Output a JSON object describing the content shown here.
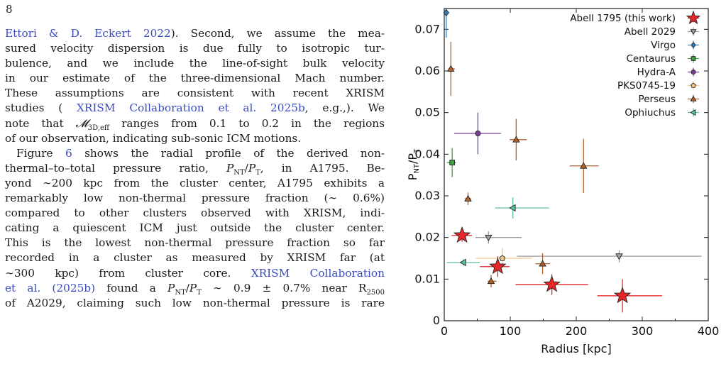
{
  "page": {
    "number": "8"
  },
  "text": {
    "lines": [
      "Ettori & D. Eckert 2022). Second, we assume the mea-",
      "sured velocity dispersion is due fully to isotropic tur-",
      "bulence, and we include the line-of-sight bulk velocity",
      "in our estimate of the three-dimensional Mach number.",
      "These assumptions are consistent with recent XRISM",
      "studies ( XRISM Collaboration et al. 2025b, e.g.,). We",
      "note that 𝓜3D,eff ranges from 0.1 to 0.2 in the regions",
      "of our observation, indicating sub-sonic ICM motions.",
      "Figure 6 shows the radial profile of the derived non-",
      "thermal–to–total pressure ratio, PNT/PT, in A1795. Be-",
      "yond ∼200 kpc from the cluster center, A1795 exhibits a",
      "remarkably low non-thermal pressure fraction (∼ 0.6%)",
      "compared to other clusters observed with XRISM, indi-",
      "cating a quiescent ICM just outside the cluster center.",
      "This is the lowest non-thermal pressure fraction so far",
      "recorded in a cluster as measured by XRISM far (at",
      "∼300 kpc) from cluster core.    XRISM Collaboration",
      "et al. (2025b) found a PNT/PT ∼ 0.9 ± 0.7% near R2500",
      "of A2029, claiming such low non-thermal pressure is rare"
    ]
  },
  "chart_data": {
    "type": "scatter",
    "xlabel": "Radius [kpc]",
    "ylabel": "PNT/PT",
    "xlim": [
      0,
      400
    ],
    "ylim": [
      0,
      0.075
    ],
    "x_ticks": [
      0,
      100,
      200,
      300,
      400
    ],
    "y_ticks": [
      0,
      0.01,
      0.02,
      0.03,
      0.04,
      0.05,
      0.06,
      0.07
    ],
    "y_tick_labels": [
      "0",
      "0.01",
      "0.02",
      "0.03",
      "0.04",
      "0.05",
      "0.06",
      "0.07"
    ],
    "legend_position": "top-right",
    "series": [
      {
        "name": "Abell 1795 (this work)",
        "marker": "star",
        "color": "#e8262a",
        "points": [
          {
            "x": 27,
            "y": 0.0205,
            "xerr": [
              16,
              15
            ],
            "yerr": 0.0015
          },
          {
            "x": 81,
            "y": 0.013,
            "xerr": [
              27,
              18
            ],
            "yerr": 0.0025
          },
          {
            "x": 163,
            "y": 0.0087,
            "xerr": [
              55,
              55
            ],
            "yerr": 0.0025
          },
          {
            "x": 270,
            "y": 0.006,
            "xerr": [
              38,
              60
            ],
            "yerr": 0.004
          }
        ]
      },
      {
        "name": "Abell 2029",
        "marker": "tri-down",
        "color": "#a0a0a0",
        "points": [
          {
            "x": 67,
            "y": 0.02,
            "xerr": [
              20,
              50
            ],
            "yerr": 0.0015
          },
          {
            "x": 265,
            "y": 0.0155,
            "xerr": [
              155,
              125
            ],
            "yerr": 0.0015
          }
        ]
      },
      {
        "name": "Virgo",
        "marker": "diamond",
        "color": "#2f7fc0",
        "points": [
          {
            "x": 3,
            "y": 0.074,
            "xerr": [
              2,
              2
            ],
            "yerr": 0.006
          }
        ]
      },
      {
        "name": "Centaurus",
        "marker": "square",
        "color": "#3ea13e",
        "points": [
          {
            "x": 12,
            "y": 0.038,
            "xerr": [
              8,
              6
            ],
            "yerr": 0.0035
          }
        ]
      },
      {
        "name": "Hydra-A",
        "marker": "circle",
        "color": "#7a3d9a",
        "points": [
          {
            "x": 51,
            "y": 0.045,
            "xerr": [
              36,
              35
            ],
            "yerr": 0.005
          }
        ]
      },
      {
        "name": "PKS0745-19",
        "marker": "pentagon",
        "color": "#f2c98c",
        "points": [
          {
            "x": 88,
            "y": 0.015,
            "xerr": [
              40,
              45
            ],
            "yerr": 0.0025
          }
        ]
      },
      {
        "name": "Perseus",
        "marker": "tri-up",
        "color": "#b5622a",
        "points": [
          {
            "x": 10,
            "y": 0.0605,
            "xerr": [
              4,
              6
            ],
            "yerr": 0.0065
          },
          {
            "x": 36,
            "y": 0.0293,
            "xerr": [
              5,
              5
            ],
            "yerr": 0.0015
          },
          {
            "x": 71,
            "y": 0.0095,
            "xerr": [
              5,
              8
            ],
            "yerr": 0.0015
          },
          {
            "x": 109,
            "y": 0.0435,
            "xerr": [
              10,
              16
            ],
            "yerr": 0.005
          },
          {
            "x": 149,
            "y": 0.0137,
            "xerr": [
              11,
              11
            ],
            "yerr": 0.0025
          },
          {
            "x": 211,
            "y": 0.0372,
            "xerr": [
              21,
              23
            ],
            "yerr": 0.0065
          }
        ]
      },
      {
        "name": "Ophiuchus",
        "marker": "tri-left",
        "color": "#5fc0a0",
        "points": [
          {
            "x": 104,
            "y": 0.0271,
            "xerr": [
              27,
              55
            ],
            "yerr": 0.0025
          },
          {
            "x": 29,
            "y": 0.014,
            "xerr": [
              25,
              25
            ],
            "yerr": 0.0008
          }
        ]
      }
    ]
  }
}
